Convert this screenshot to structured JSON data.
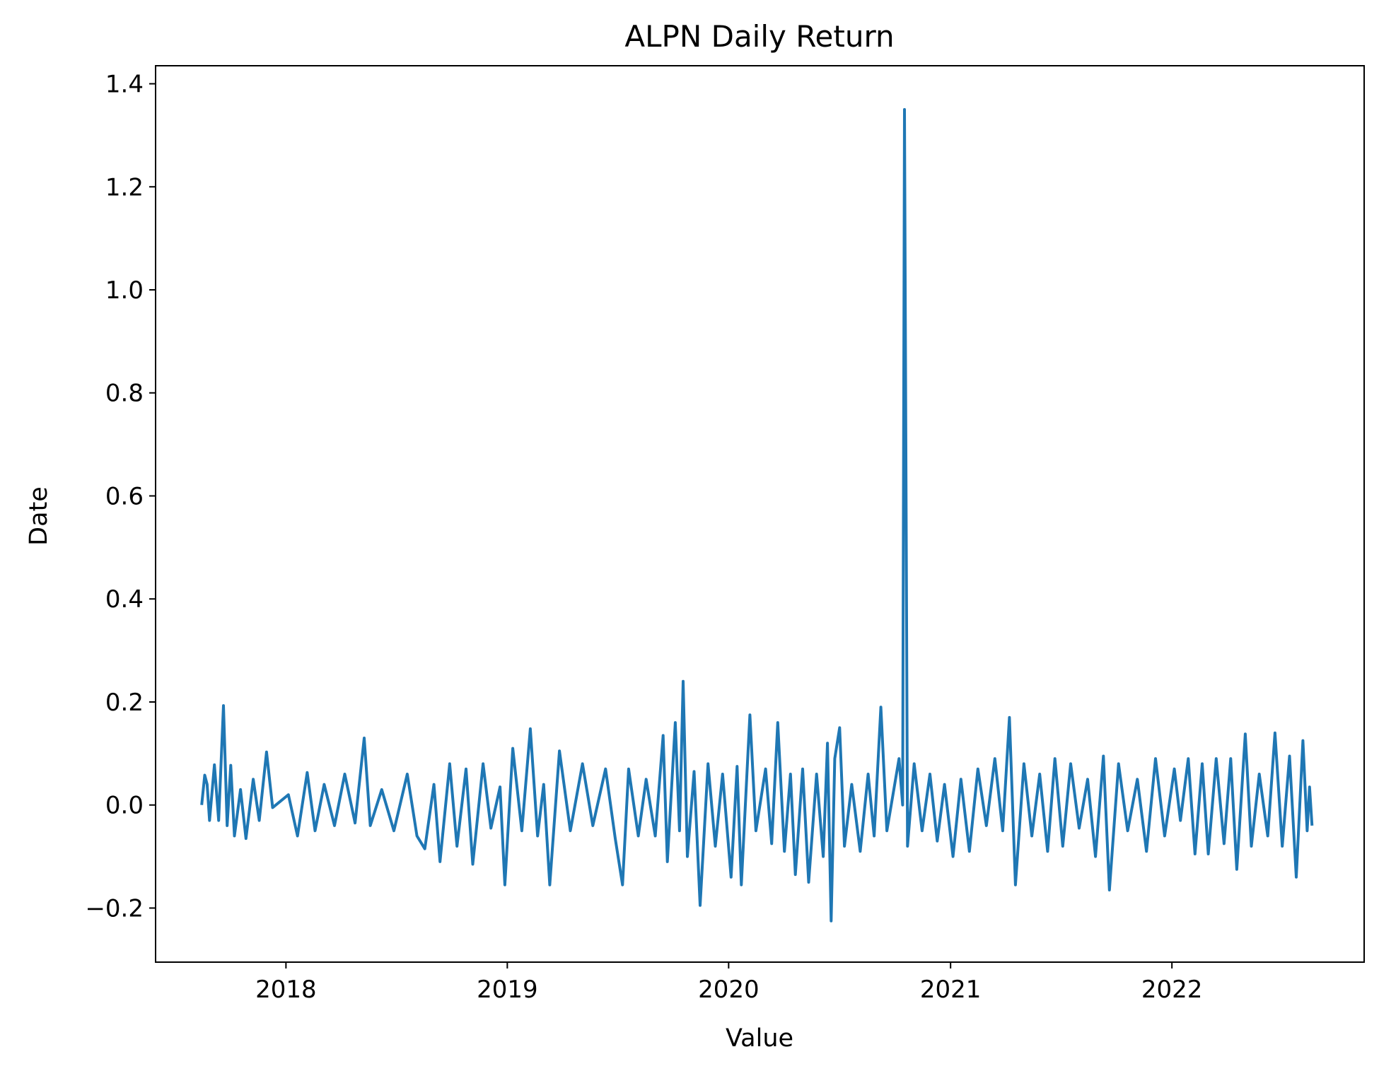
{
  "chart_data": {
    "type": "line",
    "title": "ALPN Daily Return",
    "xlabel": "Value",
    "ylabel": "Date",
    "x_range": [
      "2017-08-15",
      "2022-08-20"
    ],
    "xlim": [
      "2017-05-31",
      "2022-11-14"
    ],
    "ylim": [
      -0.305,
      1.435
    ],
    "y_ticks": [
      -0.2,
      0.0,
      0.2,
      0.4,
      0.6,
      0.8,
      1.0,
      1.2,
      1.4
    ],
    "y_tick_labels": [
      "−0.2",
      "0.0",
      "0.2",
      "0.4",
      "0.6",
      "0.8",
      "1.0",
      "1.2",
      "1.4"
    ],
    "x_ticks": [
      "2018-01-01",
      "2019-01-01",
      "2020-01-01",
      "2021-01-01",
      "2022-01-01"
    ],
    "x_tick_labels": [
      "2018",
      "2019",
      "2020",
      "2021",
      "2022"
    ],
    "grid": false,
    "legend": "none",
    "series": [
      {
        "color": "#1f77b4",
        "points": [
          [
            "2017-08-15",
            0.0
          ],
          [
            "2017-08-20",
            0.058
          ],
          [
            "2017-08-24",
            0.04
          ],
          [
            "2017-08-28",
            -0.03
          ],
          [
            "2017-09-05",
            0.078
          ],
          [
            "2017-09-12",
            -0.03
          ],
          [
            "2017-09-20",
            0.193
          ],
          [
            "2017-09-26",
            -0.04
          ],
          [
            "2017-10-02",
            0.077
          ],
          [
            "2017-10-08",
            -0.06
          ],
          [
            "2017-10-18",
            0.03
          ],
          [
            "2017-10-27",
            -0.065
          ],
          [
            "2017-11-08",
            0.05
          ],
          [
            "2017-11-18",
            -0.03
          ],
          [
            "2017-11-30",
            0.103
          ],
          [
            "2017-12-10",
            -0.005
          ],
          [
            "2018-01-05",
            0.02
          ],
          [
            "2018-01-20",
            -0.06
          ],
          [
            "2018-02-05",
            0.063
          ],
          [
            "2018-02-18",
            -0.05
          ],
          [
            "2018-03-05",
            0.04
          ],
          [
            "2018-03-22",
            -0.04
          ],
          [
            "2018-04-08",
            0.06
          ],
          [
            "2018-04-25",
            -0.035
          ],
          [
            "2018-05-10",
            0.13
          ],
          [
            "2018-05-20",
            -0.04
          ],
          [
            "2018-06-08",
            0.03
          ],
          [
            "2018-06-28",
            -0.05
          ],
          [
            "2018-07-20",
            0.06
          ],
          [
            "2018-08-05",
            -0.06
          ],
          [
            "2018-08-18",
            -0.085
          ],
          [
            "2018-09-02",
            0.04
          ],
          [
            "2018-09-12",
            -0.11
          ],
          [
            "2018-09-28",
            0.08
          ],
          [
            "2018-10-10",
            -0.08
          ],
          [
            "2018-10-25",
            0.07
          ],
          [
            "2018-11-05",
            -0.115
          ],
          [
            "2018-11-22",
            0.08
          ],
          [
            "2018-12-05",
            -0.045
          ],
          [
            "2018-12-20",
            0.035
          ],
          [
            "2018-12-28",
            -0.155
          ],
          [
            "2019-01-10",
            0.11
          ],
          [
            "2019-01-25",
            -0.05
          ],
          [
            "2019-02-08",
            0.148
          ],
          [
            "2019-02-20",
            -0.06
          ],
          [
            "2019-03-02",
            0.04
          ],
          [
            "2019-03-12",
            -0.155
          ],
          [
            "2019-03-28",
            0.105
          ],
          [
            "2019-04-15",
            -0.05
          ],
          [
            "2019-05-05",
            0.08
          ],
          [
            "2019-05-22",
            -0.04
          ],
          [
            "2019-06-12",
            0.07
          ],
          [
            "2019-06-28",
            -0.065
          ],
          [
            "2019-07-10",
            -0.155
          ],
          [
            "2019-07-20",
            0.07
          ],
          [
            "2019-08-05",
            -0.06
          ],
          [
            "2019-08-18",
            0.05
          ],
          [
            "2019-09-02",
            -0.06
          ],
          [
            "2019-09-15",
            0.135
          ],
          [
            "2019-09-22",
            -0.11
          ],
          [
            "2019-10-05",
            0.16
          ],
          [
            "2019-10-12",
            -0.05
          ],
          [
            "2019-10-18",
            0.24
          ],
          [
            "2019-10-25",
            -0.1
          ],
          [
            "2019-11-05",
            0.065
          ],
          [
            "2019-11-15",
            -0.195
          ],
          [
            "2019-11-28",
            0.08
          ],
          [
            "2019-12-10",
            -0.08
          ],
          [
            "2019-12-22",
            0.06
          ],
          [
            "2020-01-05",
            -0.14
          ],
          [
            "2020-01-15",
            0.075
          ],
          [
            "2020-01-22",
            -0.155
          ],
          [
            "2020-02-05",
            0.175
          ],
          [
            "2020-02-15",
            -0.05
          ],
          [
            "2020-03-02",
            0.07
          ],
          [
            "2020-03-12",
            -0.075
          ],
          [
            "2020-03-22",
            0.16
          ],
          [
            "2020-04-02",
            -0.09
          ],
          [
            "2020-04-12",
            0.06
          ],
          [
            "2020-04-20",
            -0.135
          ],
          [
            "2020-05-02",
            0.07
          ],
          [
            "2020-05-12",
            -0.15
          ],
          [
            "2020-05-25",
            0.06
          ],
          [
            "2020-06-05",
            -0.1
          ],
          [
            "2020-06-12",
            0.12
          ],
          [
            "2020-06-18",
            -0.225
          ],
          [
            "2020-06-24",
            0.09
          ],
          [
            "2020-07-02",
            0.15
          ],
          [
            "2020-07-10",
            -0.08
          ],
          [
            "2020-07-22",
            0.04
          ],
          [
            "2020-08-05",
            -0.09
          ],
          [
            "2020-08-18",
            0.06
          ],
          [
            "2020-08-28",
            -0.06
          ],
          [
            "2020-09-08",
            0.19
          ],
          [
            "2020-09-18",
            -0.05
          ],
          [
            "2020-09-28",
            0.02
          ],
          [
            "2020-10-08",
            0.09
          ],
          [
            "2020-10-14",
            0.0
          ],
          [
            "2020-10-17",
            1.35
          ],
          [
            "2020-10-22",
            -0.08
          ],
          [
            "2020-11-02",
            0.08
          ],
          [
            "2020-11-15",
            -0.05
          ],
          [
            "2020-11-28",
            0.06
          ],
          [
            "2020-12-10",
            -0.07
          ],
          [
            "2020-12-22",
            0.04
          ],
          [
            "2021-01-05",
            -0.1
          ],
          [
            "2021-01-18",
            0.05
          ],
          [
            "2021-02-01",
            -0.09
          ],
          [
            "2021-02-15",
            0.07
          ],
          [
            "2021-03-01",
            -0.04
          ],
          [
            "2021-03-15",
            0.09
          ],
          [
            "2021-03-28",
            -0.05
          ],
          [
            "2021-04-08",
            0.17
          ],
          [
            "2021-04-18",
            -0.155
          ],
          [
            "2021-05-02",
            0.08
          ],
          [
            "2021-05-15",
            -0.06
          ],
          [
            "2021-05-28",
            0.06
          ],
          [
            "2021-06-10",
            -0.09
          ],
          [
            "2021-06-22",
            0.09
          ],
          [
            "2021-07-05",
            -0.08
          ],
          [
            "2021-07-18",
            0.08
          ],
          [
            "2021-08-01",
            -0.045
          ],
          [
            "2021-08-15",
            0.05
          ],
          [
            "2021-08-28",
            -0.1
          ],
          [
            "2021-09-10",
            0.095
          ],
          [
            "2021-09-20",
            -0.165
          ],
          [
            "2021-10-05",
            0.08
          ],
          [
            "2021-10-20",
            -0.05
          ],
          [
            "2021-11-05",
            0.05
          ],
          [
            "2021-11-20",
            -0.09
          ],
          [
            "2021-12-05",
            0.09
          ],
          [
            "2021-12-20",
            -0.06
          ],
          [
            "2022-01-05",
            0.07
          ],
          [
            "2022-01-15",
            -0.03
          ],
          [
            "2022-01-28",
            0.09
          ],
          [
            "2022-02-08",
            -0.095
          ],
          [
            "2022-02-20",
            0.08
          ],
          [
            "2022-03-02",
            -0.095
          ],
          [
            "2022-03-15",
            0.09
          ],
          [
            "2022-03-28",
            -0.075
          ],
          [
            "2022-04-08",
            0.09
          ],
          [
            "2022-04-18",
            -0.125
          ],
          [
            "2022-05-02",
            0.138
          ],
          [
            "2022-05-12",
            -0.08
          ],
          [
            "2022-05-25",
            0.06
          ],
          [
            "2022-06-08",
            -0.06
          ],
          [
            "2022-06-20",
            0.14
          ],
          [
            "2022-07-02",
            -0.08
          ],
          [
            "2022-07-14",
            0.095
          ],
          [
            "2022-07-25",
            -0.14
          ],
          [
            "2022-08-05",
            0.125
          ],
          [
            "2022-08-12",
            -0.05
          ],
          [
            "2022-08-16",
            0.035
          ],
          [
            "2022-08-20",
            -0.04
          ]
        ]
      }
    ]
  }
}
